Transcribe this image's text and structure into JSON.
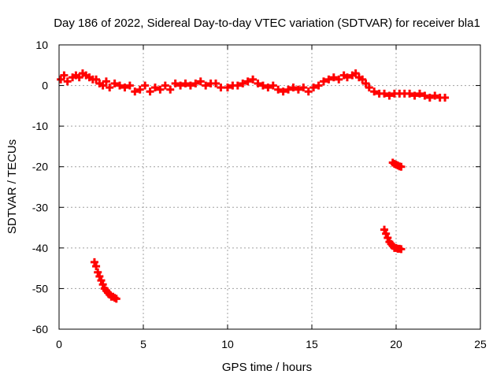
{
  "chart_data": {
    "type": "scatter",
    "title": "Day 186 of 2022, Sidereal Day-to-day VTEC variation (SDTVAR) for receiver bla1",
    "xlabel": "GPS time / hours",
    "ylabel": "SDTVAR / TECUs",
    "xlim": [
      0,
      25
    ],
    "ylim": [
      -60,
      10
    ],
    "xticks": [
      0,
      5,
      10,
      15,
      20,
      25
    ],
    "yticks": [
      10,
      0,
      -10,
      -20,
      -30,
      -40,
      -50,
      -60
    ],
    "grid": true,
    "marker": "+",
    "color": "#ff0000",
    "series": [
      {
        "name": "main",
        "x": [
          0.1,
          0.3,
          0.5,
          0.8,
          1.0,
          1.2,
          1.4,
          1.6,
          1.8,
          2.0,
          2.2,
          2.4,
          2.6,
          2.8,
          3.0,
          3.3,
          3.6,
          3.9,
          4.2,
          4.5,
          4.8,
          5.1,
          5.4,
          5.7,
          6.0,
          6.3,
          6.6,
          6.9,
          7.2,
          7.5,
          7.8,
          8.1,
          8.4,
          8.7,
          9.0,
          9.3,
          9.6,
          10.0,
          10.3,
          10.6,
          10.9,
          11.2,
          11.5,
          11.8,
          12.1,
          12.4,
          12.7,
          13.0,
          13.3,
          13.6,
          13.9,
          14.2,
          14.5,
          14.8,
          15.1,
          15.4,
          15.7,
          16.0,
          16.3,
          16.6,
          16.9,
          17.1,
          17.4,
          17.6,
          17.8,
          18.0,
          18.2,
          18.4,
          18.7,
          19.0,
          19.3,
          19.6,
          19.9,
          20.2,
          20.5,
          20.8,
          21.1,
          21.4,
          21.7,
          22.0,
          22.3,
          22.6,
          22.9
        ],
        "y": [
          1.5,
          2.5,
          1.0,
          2.0,
          2.5,
          2.0,
          3.0,
          2.5,
          2.0,
          1.5,
          1.5,
          0.5,
          0.0,
          1.0,
          -0.5,
          0.5,
          0.0,
          -0.5,
          0.0,
          -1.5,
          -1.0,
          0.0,
          -1.5,
          -0.5,
          -1.0,
          0.0,
          -1.0,
          0.5,
          0.0,
          0.5,
          0.0,
          0.5,
          1.0,
          0.0,
          0.5,
          0.5,
          -0.5,
          -0.5,
          0.0,
          0.0,
          0.5,
          1.0,
          1.5,
          0.5,
          0.0,
          -0.5,
          0.0,
          -1.0,
          -1.5,
          -1.0,
          -0.5,
          -1.0,
          -0.5,
          -1.5,
          -0.5,
          0.0,
          1.0,
          1.5,
          2.0,
          1.5,
          2.5,
          2.0,
          2.5,
          3.0,
          2.0,
          1.5,
          0.5,
          -0.5,
          -1.5,
          -2.0,
          -2.0,
          -2.5,
          -2.0,
          -2.0,
          -2.0,
          -2.0,
          -2.5,
          -2.0,
          -2.5,
          -3.0,
          -2.5,
          -3.0,
          -3.0
        ]
      },
      {
        "name": "low-segment-1",
        "x": [
          2.1,
          2.2,
          2.3,
          2.4,
          2.5,
          2.6,
          2.7,
          2.8,
          2.9,
          3.0,
          3.1,
          3.2,
          3.3,
          3.4
        ],
        "y": [
          -43.5,
          -44.5,
          -46.0,
          -47.0,
          -48.0,
          -49.0,
          -50.0,
          -50.5,
          -51.0,
          -51.5,
          -52.0,
          -52.0,
          -52.3,
          -52.5
        ]
      },
      {
        "name": "low-segment-2",
        "x": [
          19.3,
          19.4,
          19.5,
          19.6,
          19.7,
          19.8,
          19.9,
          20.0,
          20.1,
          20.2,
          20.3
        ],
        "y": [
          -35.5,
          -36.5,
          -37.5,
          -38.5,
          -39.0,
          -39.5,
          -40.0,
          -40.0,
          -40.2,
          -40.2,
          -40.3
        ]
      },
      {
        "name": "low-segment-3",
        "x": [
          19.8,
          19.9,
          20.0,
          20.1,
          20.2,
          20.3
        ],
        "y": [
          -19.0,
          -19.3,
          -19.5,
          -19.7,
          -19.9,
          -20.0
        ]
      }
    ]
  }
}
